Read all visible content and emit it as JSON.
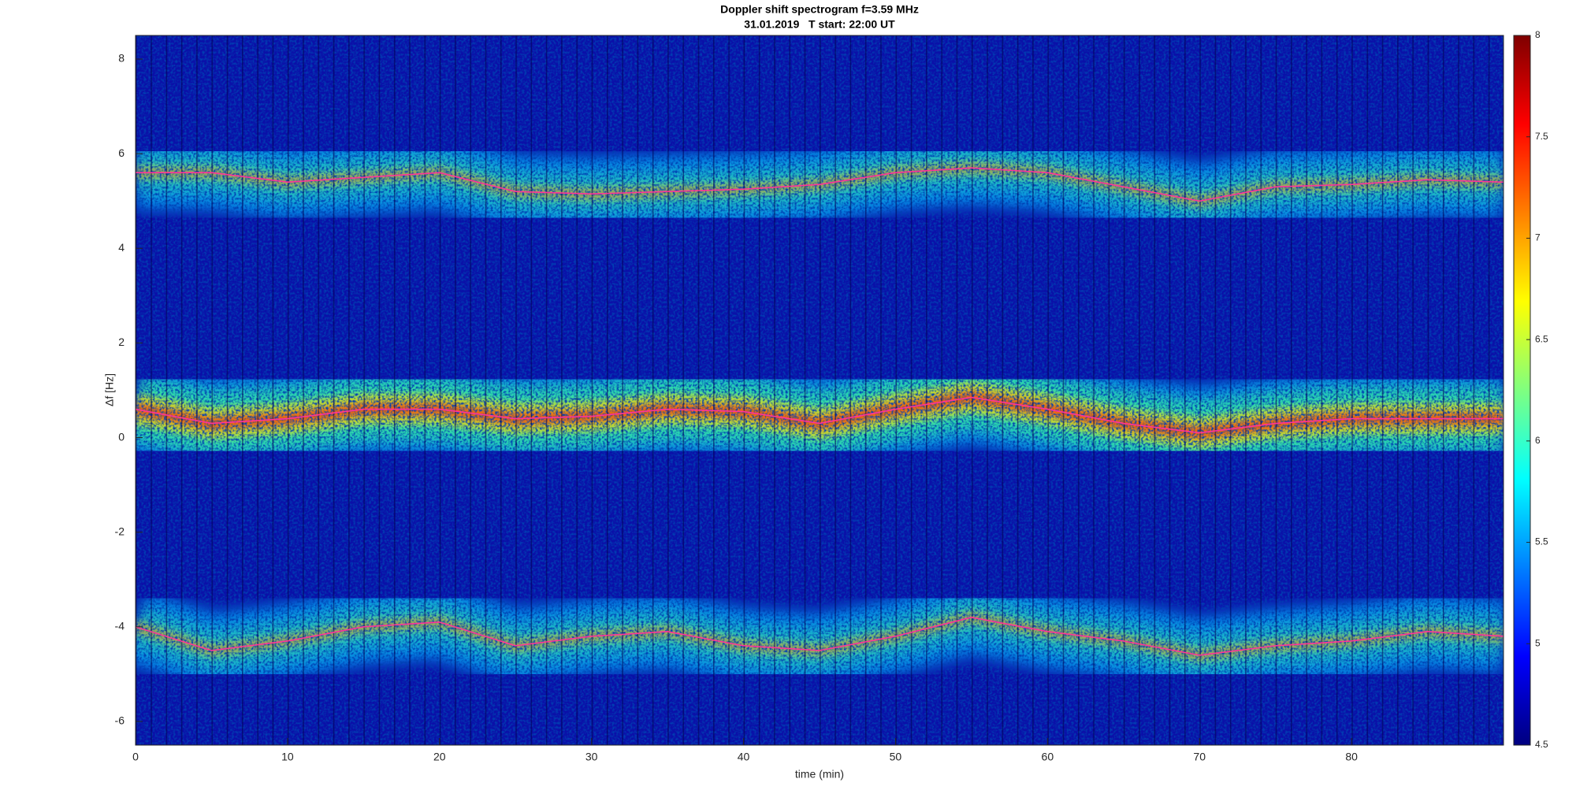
{
  "chart_data": {
    "type": "spectrogram",
    "title": "Doppler shift spectrogram f=3.59 MHz",
    "subtitle": "31.01.2019   T start: 22:00 UT",
    "xlabel": "time (min)",
    "ylabel": "Δf [Hz]",
    "x": [
      0,
      5,
      10,
      15,
      20,
      25,
      30,
      35,
      40,
      45,
      50,
      55,
      60,
      65,
      70,
      75,
      80,
      85,
      90
    ],
    "series": [
      {
        "color": "#ff3399",
        "values": [
          5.6,
          5.6,
          5.4,
          5.5,
          5.6,
          5.2,
          5.15,
          5.2,
          5.25,
          5.35,
          5.6,
          5.7,
          5.6,
          5.3,
          5.0,
          5.3,
          5.35,
          5.45,
          5.4
        ]
      },
      {
        "color": "#ff3399",
        "values": [
          0.6,
          0.3,
          0.4,
          0.6,
          0.6,
          0.4,
          0.45,
          0.6,
          0.55,
          0.3,
          0.6,
          0.85,
          0.6,
          0.3,
          0.1,
          0.3,
          0.4,
          0.4,
          0.4
        ]
      },
      {
        "color": "#ff3399",
        "values": [
          -4.0,
          -4.5,
          -4.3,
          -4.0,
          -3.9,
          -4.4,
          -4.2,
          -4.1,
          -4.4,
          -4.5,
          -4.2,
          -3.8,
          -4.1,
          -4.3,
          -4.6,
          -4.4,
          -4.3,
          -4.1,
          -4.2
        ]
      }
    ],
    "xlim": [
      0,
      90
    ],
    "xticks": [
      0,
      10,
      20,
      30,
      40,
      50,
      60,
      70,
      80
    ],
    "ylim": [
      -6.5,
      8.5
    ],
    "yticks": [
      -6,
      -4,
      -2,
      0,
      2,
      4,
      6,
      8
    ],
    "colorbar": {
      "lim": [
        4.5,
        8
      ],
      "ticks": [
        4.5,
        5,
        5.5,
        6,
        6.5,
        7,
        7.5,
        8
      ]
    }
  }
}
